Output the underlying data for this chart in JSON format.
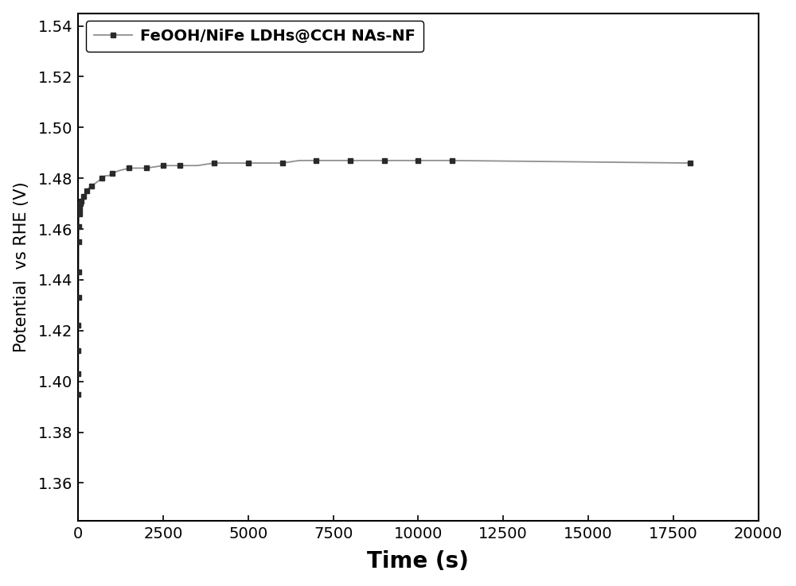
{
  "xlabel": "Time (s)",
  "ylabel": "Potential  vs RHE (V)",
  "xlim": [
    0,
    20000
  ],
  "ylim": [
    1.345,
    1.545
  ],
  "xticks": [
    0,
    2500,
    5000,
    7500,
    10000,
    12500,
    15000,
    17500,
    20000
  ],
  "yticks": [
    1.36,
    1.38,
    1.4,
    1.42,
    1.44,
    1.46,
    1.48,
    1.5,
    1.52,
    1.54
  ],
  "legend_label": "FeOOH/NiFe LDHs@CCH NAs-NF",
  "line_color": "#909090",
  "marker_color": "#2a2a2a",
  "marker": "s",
  "marker_size": 5,
  "line_width": 1.3,
  "xlabel_fontsize": 20,
  "ylabel_fontsize": 15,
  "tick_fontsize": 14,
  "legend_fontsize": 14,
  "background_color": "#ffffff",
  "dense_x": [
    0,
    2,
    4,
    6,
    8,
    10,
    15,
    20,
    25,
    30,
    40,
    50,
    60,
    70,
    80,
    90,
    100,
    120,
    150,
    200,
    250,
    300,
    400,
    500,
    600,
    700,
    800,
    900,
    1000,
    1200,
    1500,
    2000,
    2500,
    3000,
    3500,
    4000,
    4500,
    5000,
    5500,
    6000,
    6500,
    7000,
    7500,
    8000,
    8500,
    9000,
    9500,
    10000,
    10500,
    11000,
    18000
  ],
  "dense_y": [
    1.395,
    1.403,
    1.412,
    1.422,
    1.433,
    1.443,
    1.455,
    1.461,
    1.464,
    1.466,
    1.468,
    1.469,
    1.47,
    1.47,
    1.471,
    1.471,
    1.471,
    1.472,
    1.473,
    1.474,
    1.475,
    1.476,
    1.477,
    1.478,
    1.479,
    1.48,
    1.481,
    1.481,
    1.482,
    1.483,
    1.484,
    1.484,
    1.485,
    1.485,
    1.485,
    1.486,
    1.486,
    1.486,
    1.486,
    1.486,
    1.487,
    1.487,
    1.487,
    1.487,
    1.487,
    1.487,
    1.487,
    1.487,
    1.487,
    1.487,
    1.486
  ],
  "marker_x": [
    0,
    2,
    4,
    6,
    8,
    10,
    15,
    20,
    30,
    40,
    60,
    90,
    150,
    250,
    400,
    700,
    1000,
    1500,
    2000,
    2500,
    3000,
    4000,
    5000,
    6000,
    7000,
    8000,
    9000,
    10000,
    11000,
    18000
  ],
  "marker_y": [
    1.395,
    1.403,
    1.412,
    1.422,
    1.433,
    1.443,
    1.455,
    1.461,
    1.466,
    1.468,
    1.47,
    1.471,
    1.473,
    1.475,
    1.477,
    1.48,
    1.482,
    1.484,
    1.484,
    1.485,
    1.485,
    1.486,
    1.486,
    1.486,
    1.487,
    1.487,
    1.487,
    1.487,
    1.487,
    1.486
  ]
}
